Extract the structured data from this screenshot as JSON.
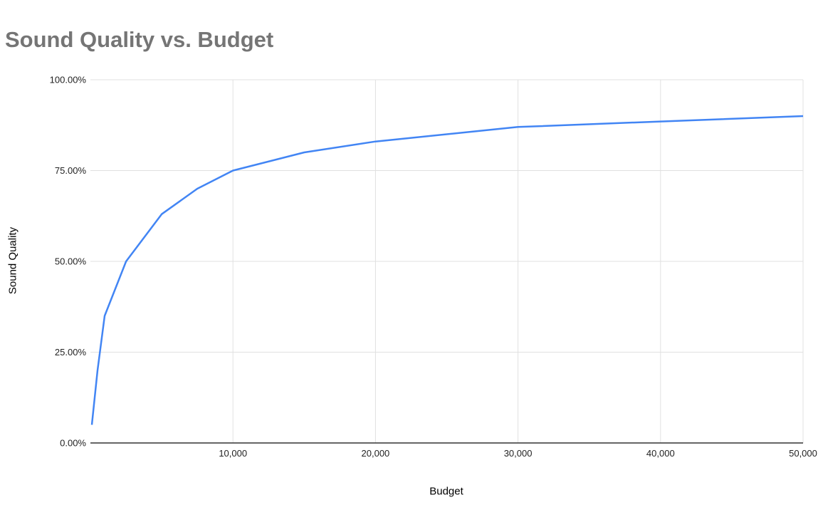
{
  "chart_data": {
    "type": "line",
    "title": "Sound Quality vs. Budget",
    "xlabel": "Budget",
    "ylabel": "Sound Quality",
    "series": [
      {
        "name": "Sound Quality",
        "points": [
          {
            "x": 100,
            "y": 5
          },
          {
            "x": 500,
            "y": 20
          },
          {
            "x": 1000,
            "y": 35
          },
          {
            "x": 2500,
            "y": 50
          },
          {
            "x": 5000,
            "y": 63
          },
          {
            "x": 7500,
            "y": 70
          },
          {
            "x": 10000,
            "y": 75
          },
          {
            "x": 15000,
            "y": 80
          },
          {
            "x": 20000,
            "y": 83
          },
          {
            "x": 30000,
            "y": 87
          },
          {
            "x": 40000,
            "y": 88.5
          },
          {
            "x": 50000,
            "y": 90
          }
        ]
      }
    ],
    "xlim": [
      0,
      50000
    ],
    "ylim": [
      0,
      100
    ],
    "x_ticks": [
      {
        "value": 10000,
        "label": "10,000"
      },
      {
        "value": 20000,
        "label": "20,000"
      },
      {
        "value": 30000,
        "label": "30,000"
      },
      {
        "value": 40000,
        "label": "40,000"
      },
      {
        "value": 50000,
        "label": "50,000"
      }
    ],
    "y_ticks": [
      {
        "value": 0,
        "label": "0.00%"
      },
      {
        "value": 25,
        "label": "25.00%"
      },
      {
        "value": 50,
        "label": "50.00%"
      },
      {
        "value": 75,
        "label": "75.00%"
      },
      {
        "value": 100,
        "label": "100.00%"
      }
    ],
    "grid": true,
    "legend": "none",
    "colors": {
      "line": "#4285f4",
      "title": "#757575",
      "axis_text": "#222222",
      "gridline": "#e0e0e0",
      "axis_line": "#333333"
    }
  }
}
